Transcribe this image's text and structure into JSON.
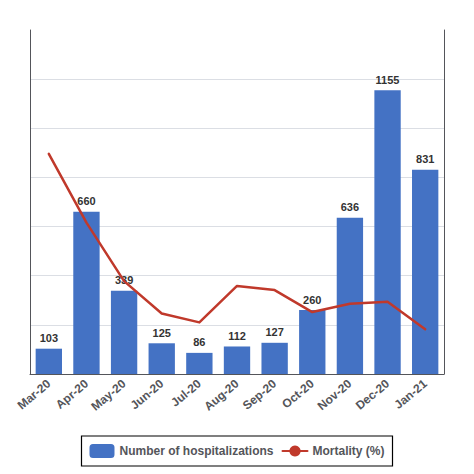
{
  "chart_data": {
    "type": "bar",
    "categories": [
      "Mar-20",
      "Apr-20",
      "May-20",
      "Jun-20",
      "Jul-20",
      "Aug-20",
      "Sep-20",
      "Oct-20",
      "Nov-20",
      "Dec-20",
      "Jan-21"
    ],
    "series": [
      {
        "name": "Number of hospitalizations",
        "type": "bar",
        "color": "#4472c4",
        "values": [
          103,
          660,
          339,
          125,
          86,
          112,
          127,
          260,
          636,
          1155,
          831
        ],
        "data_labels": true
      },
      {
        "name": "Mortality (%)",
        "type": "line",
        "color": "#c0392b",
        "axis": "y2",
        "values": [
          32.0,
          22.0,
          13.5,
          8.8,
          7.5,
          12.8,
          12.2,
          9.0,
          10.2,
          10.5,
          6.5
        ]
      }
    ],
    "ylim": [
      0,
      1400
    ],
    "yticks": [
      200,
      400,
      600,
      800,
      1000,
      1200
    ],
    "y2lim": [
      0,
      50
    ],
    "grid": true,
    "legend": "bottom",
    "tick_labels": "x"
  }
}
